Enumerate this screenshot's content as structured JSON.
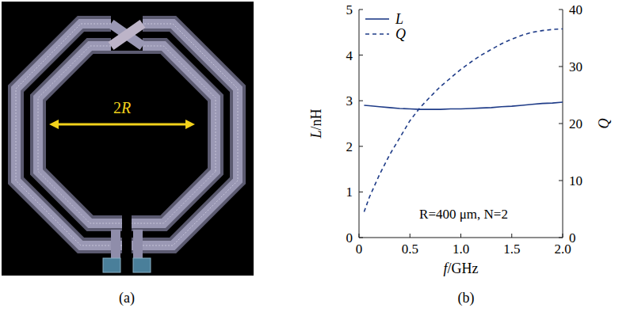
{
  "chart_data": {
    "type": "line",
    "x_label": "f/GHz",
    "y_label": "L/nH",
    "y2_label": "Q",
    "annotation": "R=400 μm, N=2",
    "caption": "(b)",
    "x": [
      0.05,
      0.1,
      0.2,
      0.3,
      0.4,
      0.5,
      0.6,
      0.7,
      0.8,
      0.9,
      1.0,
      1.1,
      1.2,
      1.3,
      1.4,
      1.5,
      1.6,
      1.7,
      1.8,
      1.9,
      2.0
    ],
    "xlim": [
      0,
      2
    ],
    "xticks": [
      0,
      0.5,
      {
        "value": 1,
        "label": "1.0"
      },
      1.5,
      {
        "value": 2,
        "label": "2.0"
      }
    ],
    "ylim": [
      0,
      5
    ],
    "yticks": [
      0,
      1,
      2,
      3,
      4,
      5
    ],
    "y2lim": [
      0,
      40
    ],
    "y2ticks": [
      0,
      10,
      20,
      30,
      40
    ],
    "legend": "upper left",
    "grid": false,
    "series": [
      {
        "name": "L",
        "color": "#1f3c88",
        "line_style": "solid",
        "values": [
          2.9,
          2.89,
          2.87,
          2.85,
          2.83,
          2.82,
          2.81,
          2.81,
          2.81,
          2.82,
          2.82,
          2.83,
          2.84,
          2.85,
          2.87,
          2.88,
          2.9,
          2.92,
          2.94,
          2.95,
          2.97
        ]
      },
      {
        "name": "Q",
        "color": "#1f3c88",
        "line_style": "dashed",
        "axis": "y2",
        "values": [
          4.5,
          7,
          11,
          14.5,
          17.5,
          20.5,
          22.8,
          24.7,
          26.5,
          28,
          29.5,
          30.8,
          32,
          33,
          34,
          34.8,
          35.5,
          36,
          36.3,
          36.5,
          36.6
        ]
      }
    ]
  },
  "layout_image": {
    "dimension_label": "2R",
    "caption": "(a)"
  }
}
